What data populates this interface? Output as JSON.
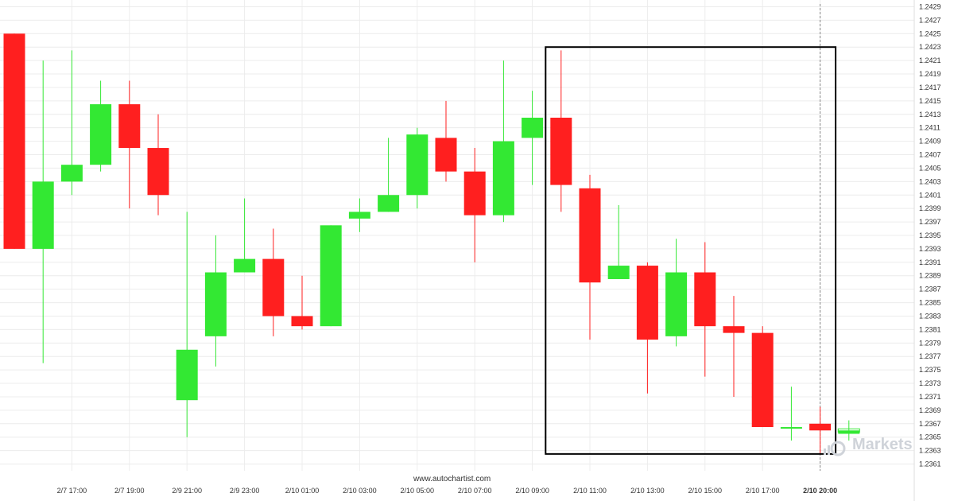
{
  "watermark": "www.autochartist.com",
  "brand": "Markets",
  "colors": {
    "up": "#33e833",
    "down": "#ff1f1f",
    "grid": "#ececec",
    "box": "#000000",
    "text": "#333333",
    "brand": "#cfd3d9"
  },
  "chart_data": {
    "type": "candlestick",
    "title": "",
    "xlabel": "",
    "ylabel": "",
    "ylim": [
      1.236,
      1.243
    ],
    "grid": true,
    "y_ticks": [
      "1.2429",
      "1.2427",
      "1.2425",
      "1.2423",
      "1.2421",
      "1.2419",
      "1.2417",
      "1.2415",
      "1.2413",
      "1.2411",
      "1.2409",
      "1.2407",
      "1.2405",
      "1.2403",
      "1.2401",
      "1.2399",
      "1.2397",
      "1.2395",
      "1.2393",
      "1.2391",
      "1.2389",
      "1.2387",
      "1.2385",
      "1.2383",
      "1.2381",
      "1.2379",
      "1.2377",
      "1.2375",
      "1.2373",
      "1.2371",
      "1.2369",
      "1.2367",
      "1.2365",
      "1.2363",
      "1.2361"
    ],
    "x_ticks": [
      {
        "label": "2/7 17:00",
        "index": 2
      },
      {
        "label": "2/7 19:00",
        "index": 4
      },
      {
        "label": "2/9 21:00",
        "index": 6
      },
      {
        "label": "2/9 23:00",
        "index": 8
      },
      {
        "label": "2/10 01:00",
        "index": 10
      },
      {
        "label": "2/10 03:00",
        "index": 12
      },
      {
        "label": "2/10 05:00",
        "index": 14
      },
      {
        "label": "2/10 07:00",
        "index": 16
      },
      {
        "label": "2/10 09:00",
        "index": 18
      },
      {
        "label": "2/10 11:00",
        "index": 20
      },
      {
        "label": "2/10 13:00",
        "index": 22
      },
      {
        "label": "2/10 15:00",
        "index": 24
      },
      {
        "label": "2/10 17:00",
        "index": 26
      },
      {
        "label": "2/10 20:00",
        "index": 28
      }
    ],
    "candles": [
      {
        "o": 1.2425,
        "h": 1.2425,
        "l": 1.2393,
        "c": 1.2393
      },
      {
        "o": 1.2393,
        "h": 1.2421,
        "l": 1.2376,
        "c": 1.2403
      },
      {
        "o": 1.2403,
        "h": 1.24225,
        "l": 1.2401,
        "c": 1.24055
      },
      {
        "o": 1.24055,
        "h": 1.2418,
        "l": 1.24045,
        "c": 1.24145
      },
      {
        "o": 1.24145,
        "h": 1.2418,
        "l": 1.2399,
        "c": 1.2408
      },
      {
        "o": 1.2408,
        "h": 1.2413,
        "l": 1.2398,
        "c": 1.2401
      },
      {
        "o": 1.23705,
        "h": 1.23985,
        "l": 1.2365,
        "c": 1.2378
      },
      {
        "o": 1.238,
        "h": 1.2395,
        "l": 1.23755,
        "c": 1.23895
      },
      {
        "o": 1.23895,
        "h": 1.24005,
        "l": 1.23895,
        "c": 1.23915
      },
      {
        "o": 1.23915,
        "h": 1.2396,
        "l": 1.238,
        "c": 1.2383
      },
      {
        "o": 1.2383,
        "h": 1.2389,
        "l": 1.2381,
        "c": 1.23815
      },
      {
        "o": 1.23815,
        "h": 1.23965,
        "l": 1.23815,
        "c": 1.23965
      },
      {
        "o": 1.23975,
        "h": 1.24005,
        "l": 1.23955,
        "c": 1.23985
      },
      {
        "o": 1.23985,
        "h": 1.24095,
        "l": 1.23985,
        "c": 1.2401
      },
      {
        "o": 1.2401,
        "h": 1.2411,
        "l": 1.2399,
        "c": 1.241
      },
      {
        "o": 1.24095,
        "h": 1.2415,
        "l": 1.2403,
        "c": 1.24045
      },
      {
        "o": 1.24045,
        "h": 1.2408,
        "l": 1.2391,
        "c": 1.2398
      },
      {
        "o": 1.2398,
        "h": 1.2421,
        "l": 1.2397,
        "c": 1.2409
      },
      {
        "o": 1.24095,
        "h": 1.24165,
        "l": 1.24025,
        "c": 1.24125
      },
      {
        "o": 1.24125,
        "h": 1.24225,
        "l": 1.23985,
        "c": 1.24025
      },
      {
        "o": 1.2402,
        "h": 1.2404,
        "l": 1.23795,
        "c": 1.2388
      },
      {
        "o": 1.23885,
        "h": 1.23995,
        "l": 1.23885,
        "c": 1.23905
      },
      {
        "o": 1.23905,
        "h": 1.2391,
        "l": 1.23715,
        "c": 1.23795
      },
      {
        "o": 1.238,
        "h": 1.23945,
        "l": 1.23785,
        "c": 1.23895
      },
      {
        "o": 1.23895,
        "h": 1.2394,
        "l": 1.2374,
        "c": 1.23815
      },
      {
        "o": 1.23815,
        "h": 1.2386,
        "l": 1.2371,
        "c": 1.23805
      },
      {
        "o": 1.23805,
        "h": 1.23815,
        "l": 1.23665,
        "c": 1.23665
      },
      {
        "o": 1.23665,
        "h": 1.23725,
        "l": 1.23645,
        "c": 1.23665
      },
      {
        "o": 1.2367,
        "h": 1.23695,
        "l": 1.23625,
        "c": 1.2366
      },
      {
        "o": 1.23655,
        "h": 1.23675,
        "l": 1.23645,
        "c": 1.2366
      }
    ],
    "highlight_box": {
      "from_index": 19,
      "to_index": 28,
      "high": 1.2423,
      "low": 1.23625
    },
    "current_time_index": 28
  }
}
